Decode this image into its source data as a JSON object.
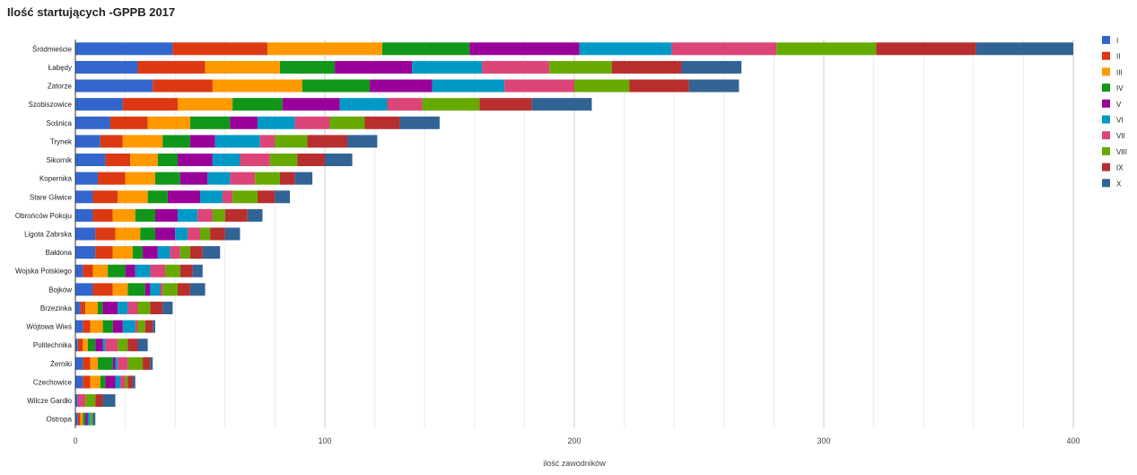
{
  "chart_data": {
    "type": "bar",
    "orientation": "horizontal",
    "stacked": true,
    "title": "Ilość startujących -GPPB 2017",
    "xlabel": "ilość zawodników",
    "ylabel": "",
    "xlim": [
      0,
      400
    ],
    "xticks": [
      0,
      100,
      200,
      300,
      400
    ],
    "grid": true,
    "legend_position": "right",
    "categories": [
      "Śródmieście",
      "Łabędy",
      "Zatorze",
      "Szobiszowice",
      "Sośnica",
      "Trynek",
      "Sikornik",
      "Kopernika",
      "Stare Gliwice",
      "Obrońców Pokoju",
      "Ligota Zabrska",
      "Bałdona",
      "Wojska Polskiego",
      "Bojków",
      "Brzezinka",
      "Wójtowa Wieś",
      "Politechnika",
      "Żerniki",
      "Czechowice",
      "Wilcze Gardło",
      "Ostropa"
    ],
    "series": [
      {
        "name": "I",
        "color": "#3366cc",
        "values": [
          39,
          25,
          31,
          19,
          14,
          10,
          12,
          9,
          7,
          7,
          8,
          8,
          3,
          7,
          2,
          3,
          1,
          3,
          3,
          1,
          1
        ]
      },
      {
        "name": "II",
        "color": "#dc3912",
        "values": [
          38,
          27,
          24,
          22,
          15,
          9,
          10,
          11,
          10,
          8,
          8,
          7,
          4,
          8,
          2,
          3,
          2,
          3,
          3,
          0,
          1
        ]
      },
      {
        "name": "III",
        "color": "#ff9900",
        "values": [
          46,
          30,
          36,
          22,
          17,
          16,
          11,
          12,
          12,
          9,
          10,
          8,
          6,
          6,
          5,
          5,
          2,
          3,
          4,
          0,
          1
        ]
      },
      {
        "name": "IV",
        "color": "#109618",
        "values": [
          35,
          22,
          27,
          20,
          16,
          11,
          8,
          10,
          8,
          8,
          6,
          4,
          7,
          7,
          2,
          4,
          3,
          6,
          2,
          0,
          1
        ]
      },
      {
        "name": "V",
        "color": "#990099",
        "values": [
          44,
          31,
          25,
          23,
          11,
          10,
          14,
          11,
          13,
          9,
          8,
          6,
          4,
          2,
          6,
          4,
          3,
          1,
          4,
          0,
          1
        ]
      },
      {
        "name": "VI",
        "color": "#0099c6",
        "values": [
          37,
          28,
          29,
          19,
          15,
          18,
          11,
          9,
          9,
          8,
          5,
          5,
          6,
          4,
          4,
          5,
          1,
          1,
          2,
          0,
          1
        ]
      },
      {
        "name": "VII",
        "color": "#dd4477",
        "values": [
          42,
          27,
          28,
          14,
          14,
          6,
          12,
          10,
          4,
          6,
          5,
          4,
          6,
          1,
          4,
          1,
          5,
          4,
          2,
          3,
          0
        ]
      },
      {
        "name": "VIII",
        "color": "#66aa00",
        "values": [
          40,
          25,
          22,
          23,
          14,
          13,
          11,
          10,
          10,
          5,
          4,
          4,
          6,
          6,
          5,
          3,
          4,
          6,
          1,
          4,
          1
        ]
      },
      {
        "name": "IX",
        "color": "#b82e2e",
        "values": [
          40,
          28,
          24,
          21,
          14,
          16,
          11,
          6,
          7,
          9,
          6,
          5,
          5,
          5,
          5,
          3,
          4,
          3,
          2,
          3,
          0
        ]
      },
      {
        "name": "X",
        "color": "#316395",
        "values": [
          39,
          24,
          20,
          24,
          16,
          12,
          11,
          7,
          6,
          6,
          6,
          7,
          4,
          6,
          4,
          1,
          4,
          1,
          1,
          5,
          1
        ]
      }
    ]
  }
}
